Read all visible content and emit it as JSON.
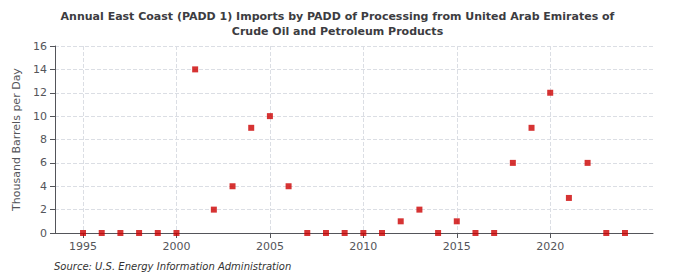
{
  "chart_data": {
    "type": "scatter",
    "title": "Annual East Coast (PADD 1) Imports by PADD of Processing from United Arab Emirates of\nCrude Oil and Petroleum Products",
    "y_label": "Thousand Barrels per Day",
    "annotation": "Source: U.S. Energy Information Administration",
    "x": [
      1995,
      1996,
      1997,
      1998,
      1999,
      2000,
      2001,
      2002,
      2003,
      2004,
      2005,
      2006,
      2007,
      2008,
      2009,
      2010,
      2011,
      2012,
      2013,
      2014,
      2015,
      2016,
      2017,
      2018,
      2019,
      2020,
      2021,
      2022,
      2023,
      2024
    ],
    "values": [
      0,
      0,
      0,
      0,
      0,
      0,
      14,
      2,
      4,
      9,
      10,
      4,
      0,
      0,
      0,
      0,
      0,
      1,
      2,
      0,
      1,
      0,
      0,
      6,
      9,
      12,
      3,
      6,
      0,
      0
    ],
    "color": "#cc0000",
    "marker": "square",
    "xlim": [
      1993.5,
      2025.5
    ],
    "xticks": [
      1995,
      2000,
      2005,
      2010,
      2015,
      2020
    ],
    "ylim": [
      0,
      16
    ],
    "yticks": [
      0,
      2,
      4,
      6,
      8,
      10,
      12,
      14,
      16
    ],
    "grid": true
  }
}
